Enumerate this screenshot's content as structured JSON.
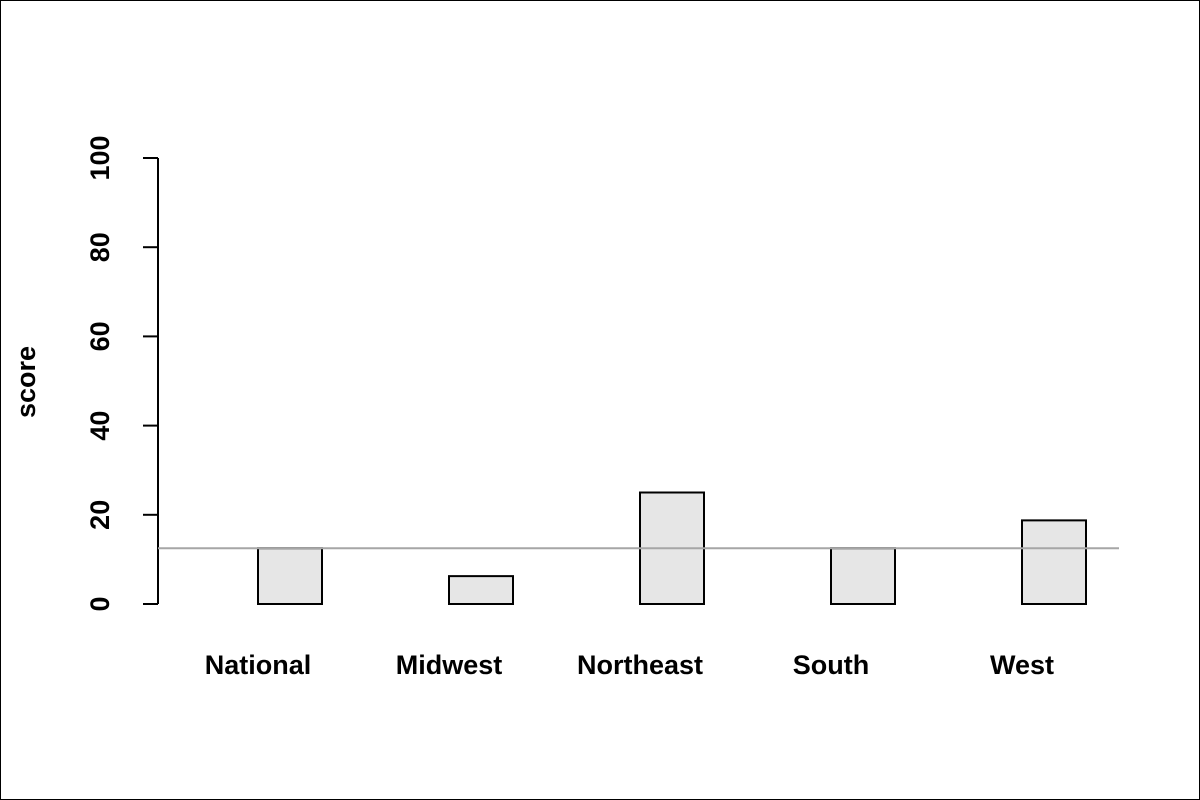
{
  "chart_data": {
    "type": "bar",
    "ylabel": "score",
    "ylim": [
      0,
      100
    ],
    "yticks": [
      "0",
      "20",
      "40",
      "60",
      "80",
      "100"
    ],
    "categories": [
      "National",
      "Midwest",
      "Northeast",
      "South",
      "West"
    ],
    "series": [
      {
        "values": [
          0,
          0,
          0,
          0,
          0
        ]
      },
      {
        "values": [
          12.5,
          6.25,
          25,
          12.5,
          18.75
        ]
      }
    ],
    "reference_line": 12.5,
    "grid": false,
    "colors": {
      "bar_fill": "#e6e6e6",
      "bar_stroke": "#000000",
      "reference_line": "#a6a6a6",
      "axis": "#000000"
    }
  }
}
